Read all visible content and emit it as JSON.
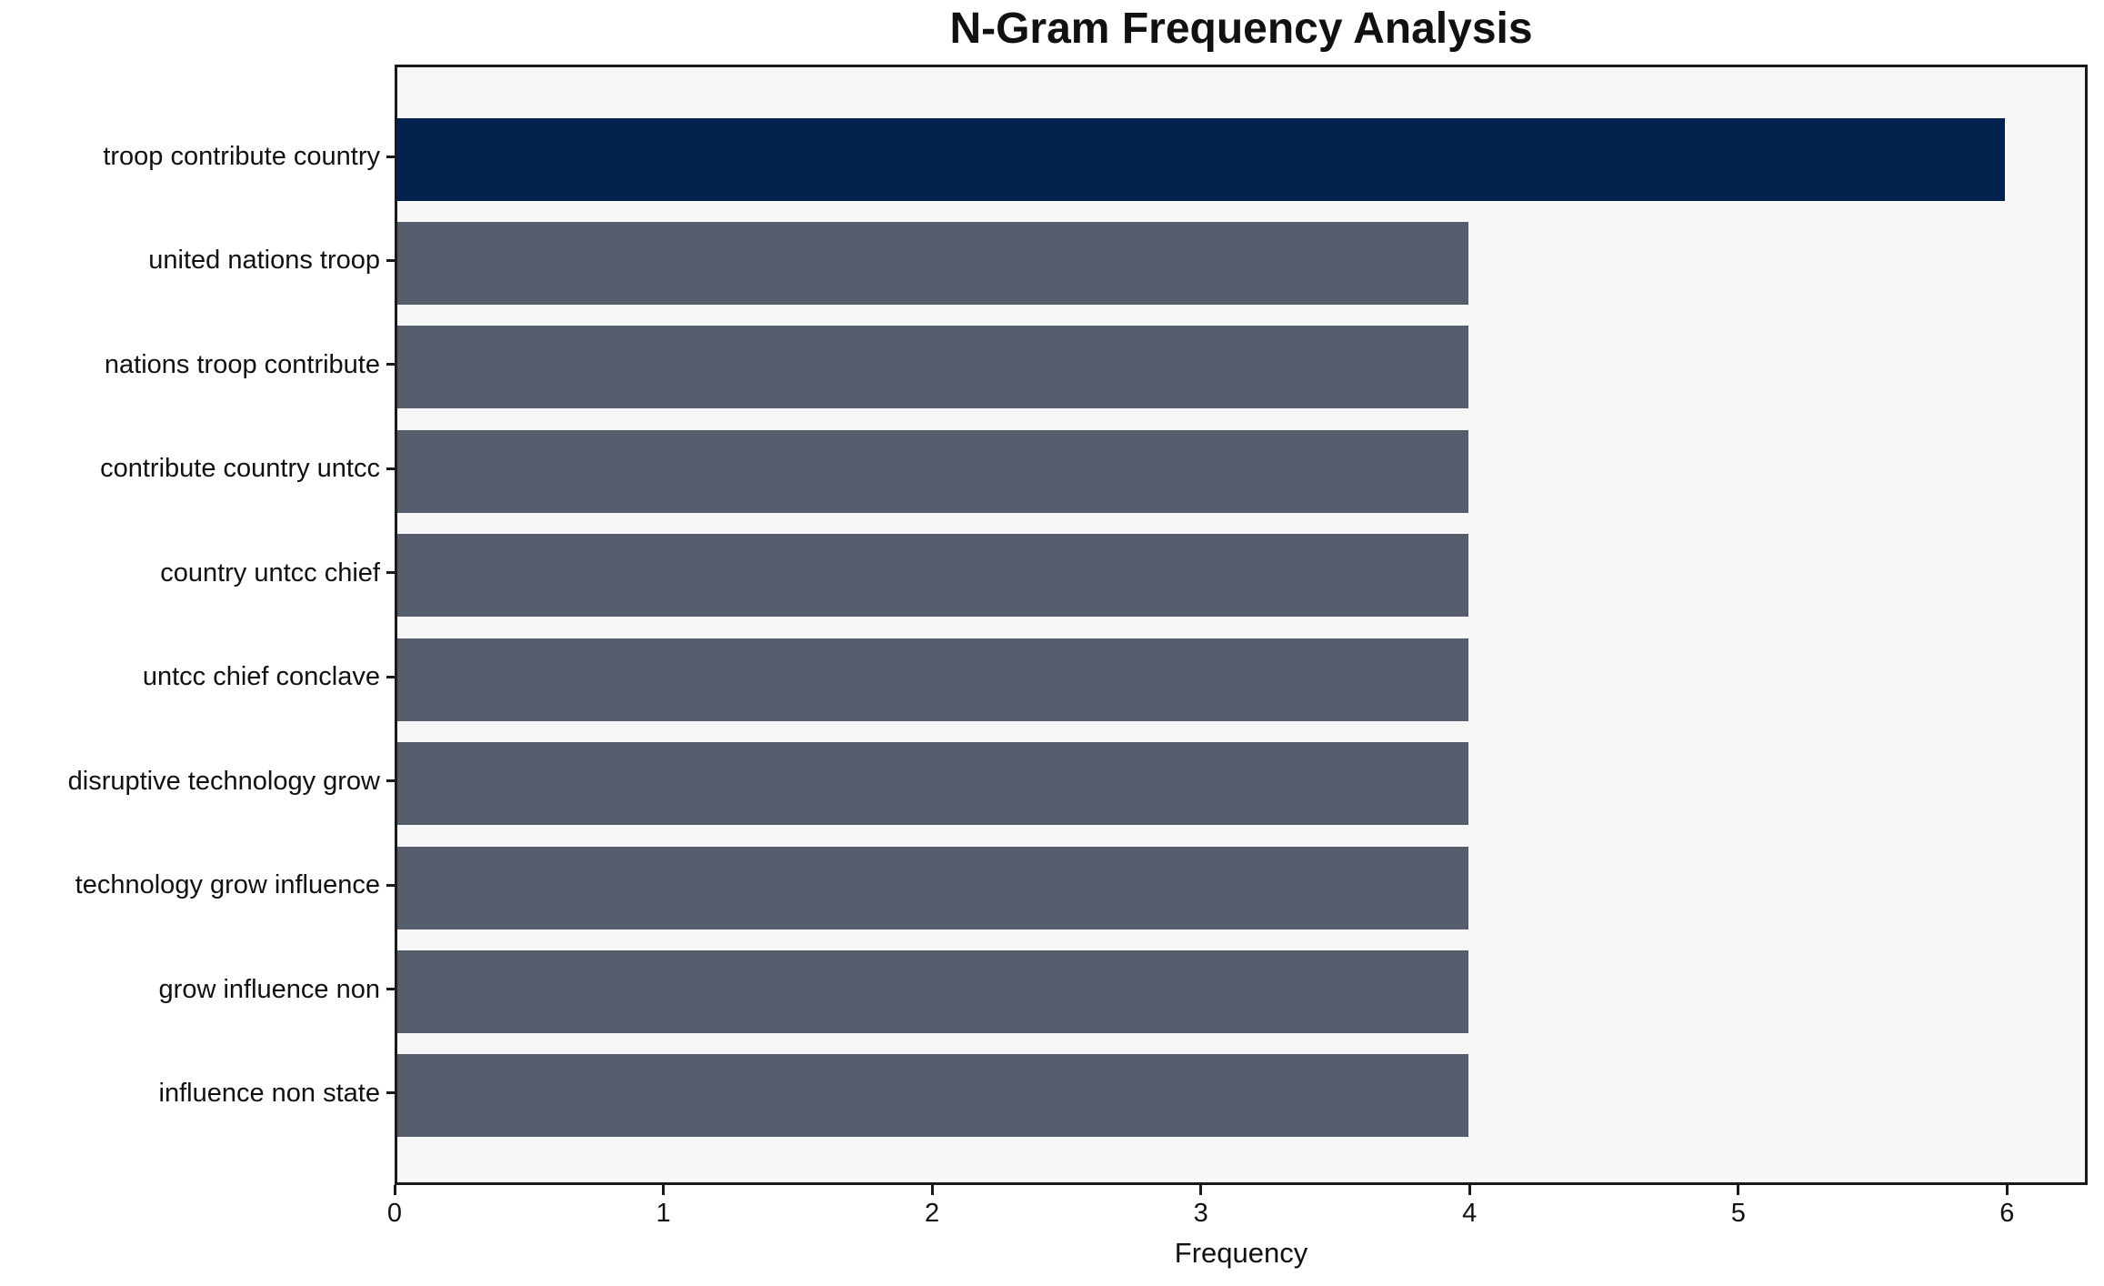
{
  "chart_data": {
    "type": "bar",
    "orientation": "horizontal",
    "title": "N-Gram Frequency Analysis",
    "xlabel": "Frequency",
    "ylabel": "",
    "categories": [
      "troop contribute country",
      "united nations troop",
      "nations troop contribute",
      "contribute country untcc",
      "country untcc chief",
      "untcc chief conclave",
      "disruptive technology grow",
      "technology grow influence",
      "grow influence non",
      "influence non state"
    ],
    "values": [
      6,
      4,
      4,
      4,
      4,
      4,
      4,
      4,
      4,
      4
    ],
    "highlight_index": 0,
    "xticks": [
      0,
      1,
      2,
      3,
      4,
      5,
      6
    ],
    "xlim": [
      0,
      6.3
    ],
    "grid": false,
    "legend": "none",
    "colors": {
      "bar": "#565d6c",
      "bar_highlight": "#03224e",
      "plot_background": "#f7f7f8",
      "figure_background": "#ffffff",
      "axis": "#1a1a1a",
      "text": "#111111"
    }
  }
}
